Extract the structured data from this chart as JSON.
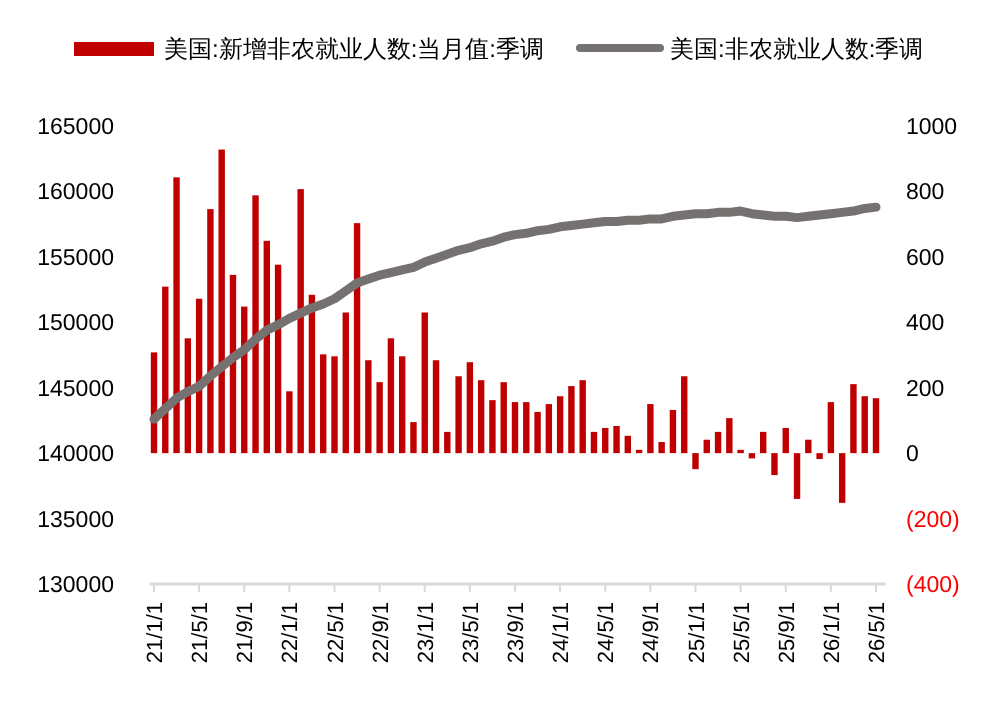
{
  "chart_data": {
    "type": "bar",
    "legend": "top",
    "categories": [
      "21/1/1",
      null,
      null,
      null,
      "21/5/1",
      null,
      null,
      null,
      "21/9/1",
      null,
      null,
      null,
      "22/1/1",
      null,
      null,
      null,
      "22/5/1",
      null,
      null,
      null,
      "22/9/1",
      null,
      null,
      null,
      "23/1/1",
      null,
      null,
      null,
      "23/5/1",
      null,
      null,
      null,
      "23/9/1",
      null,
      null,
      null,
      "24/1/1",
      null,
      null,
      null,
      "24/5/1",
      null,
      null,
      null,
      "24/9/1",
      null,
      null,
      null,
      "25/1/1",
      null,
      null,
      null,
      "25/5/1",
      null,
      null,
      null,
      "25/9/1",
      null,
      null,
      null,
      "26/1/1",
      null,
      null,
      null,
      "26/5/1"
    ],
    "series": [
      {
        "name": "美国:新增非农就业人数:当月值:季调",
        "axis": "y2",
        "color": "#c00000",
        "values": [
          308,
          509,
          843,
          351,
          472,
          746,
          928,
          545,
          448,
          788,
          649,
          576,
          189,
          807,
          484,
          302,
          296,
          430,
          703,
          284,
          217,
          351,
          296,
          95,
          430,
          284,
          65,
          235,
          278,
          223,
          162,
          217,
          156,
          156,
          126,
          150,
          174,
          205,
          223,
          65,
          77,
          83,
          53,
          10,
          150,
          34,
          132,
          235,
          -49,
          41,
          65,
          107,
          10,
          -16,
          65,
          -67,
          77,
          -140,
          41,
          -18,
          156,
          -152,
          211,
          174,
          168
        ]
      },
      {
        "name": "美国:非农就业人数:季调",
        "type": "line",
        "color": "#767171",
        "marker": "none",
        "line_style": "solid",
        "values": [
          142600,
          143400,
          144200,
          144700,
          145100,
          145900,
          146600,
          147300,
          147900,
          148700,
          149400,
          149800,
          150300,
          150700,
          151100,
          151400,
          151800,
          152400,
          153000,
          153300,
          153600,
          153800,
          154000,
          154200,
          154600,
          154900,
          155200,
          155500,
          155700,
          156000,
          156200,
          156500,
          156700,
          156800,
          157000,
          157100,
          157300,
          157400,
          157500,
          157600,
          157700,
          157700,
          157800,
          157800,
          157900,
          157900,
          158100,
          158200,
          158300,
          158300,
          158400,
          158400,
          158500,
          158300,
          158200,
          158100,
          158100,
          158000,
          158100,
          158200,
          158300,
          158400,
          158500,
          158700,
          158800
        ]
      }
    ],
    "ylim": [
      130000,
      165000
    ],
    "yticks": [
      130000,
      135000,
      140000,
      145000,
      150000,
      155000,
      160000,
      165000
    ],
    "y2lim": [
      -400,
      1000
    ],
    "y2ticks": [
      {
        "value": -400,
        "label": "(400)"
      },
      {
        "value": -200,
        "label": "(200)"
      },
      0,
      200,
      400,
      600,
      800,
      1000
    ]
  }
}
